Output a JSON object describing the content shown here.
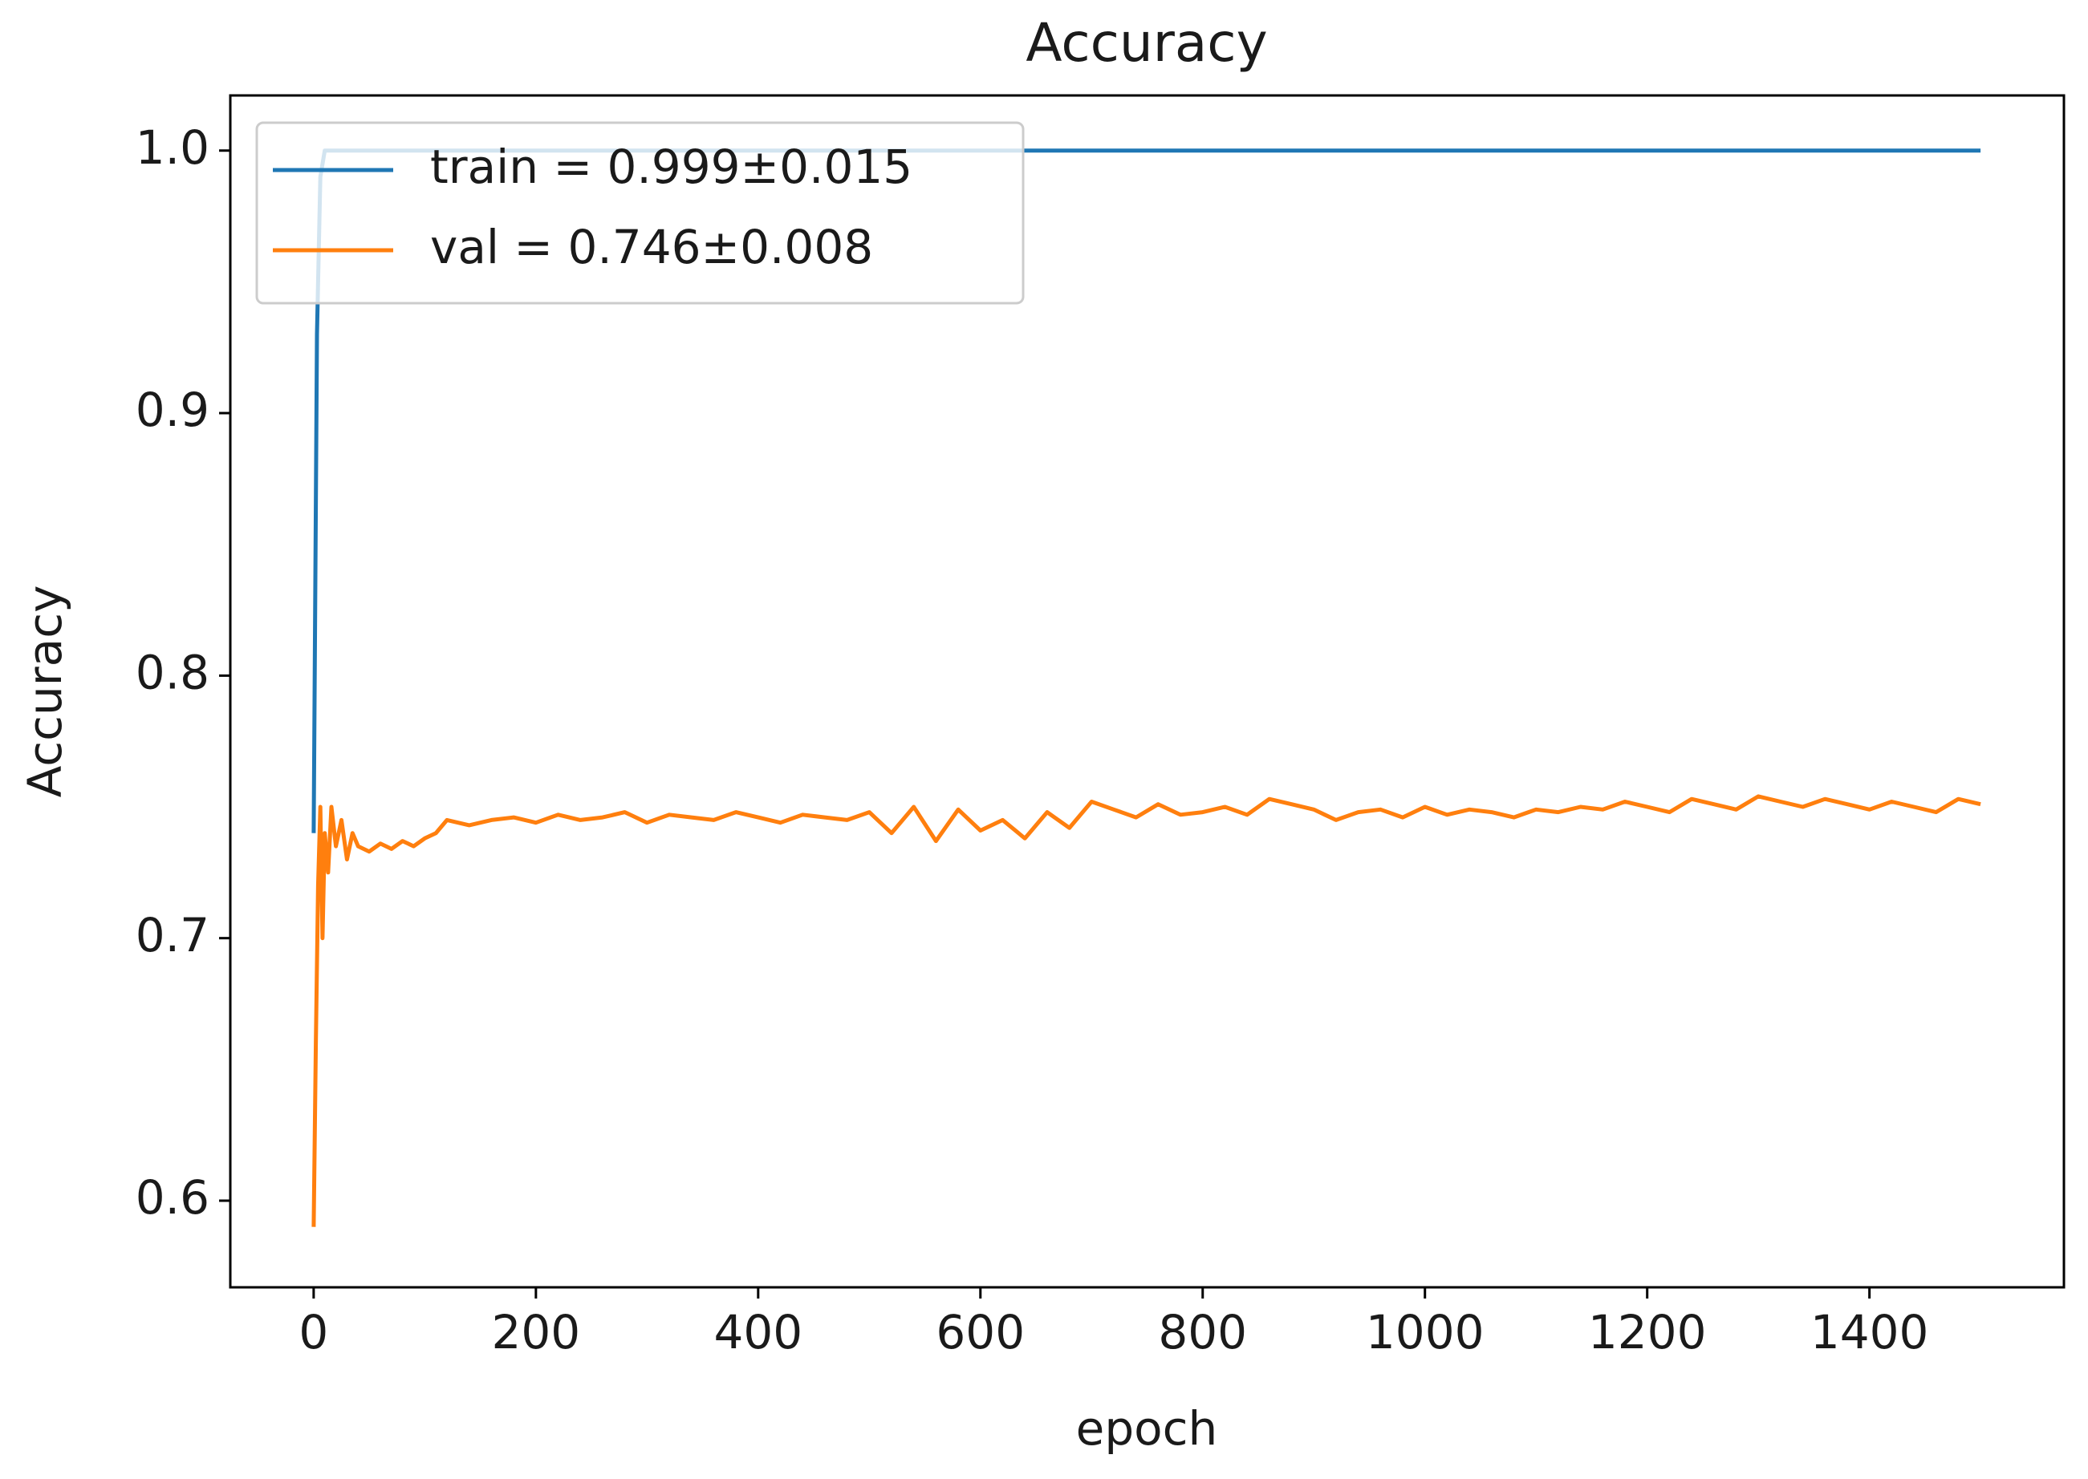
{
  "chart_data": {
    "type": "line",
    "title": "Accuracy",
    "x_label": "epoch",
    "y_label": "Accuracy",
    "xlim": [
      -75,
      1575
    ],
    "ylim": [
      0.567,
      1.021
    ],
    "xticks": [
      0,
      200,
      400,
      600,
      800,
      1000,
      1200,
      1400
    ],
    "yticks": [
      0.6,
      0.7,
      0.8,
      0.9,
      {
        "value": 1.0,
        "label": "1.0"
      }
    ],
    "legend": "upper left",
    "grid": false,
    "series": [
      {
        "name": "train = 0.999±0.015",
        "color": "#1f77b4",
        "x": [
          0,
          3,
          6,
          10,
          1500
        ],
        "values": [
          0.74,
          0.93,
          0.99,
          1.0,
          1.0
        ]
      },
      {
        "name": "val = 0.746±0.008",
        "color": "#ff7f0e",
        "x": [
          0,
          2,
          4,
          6,
          8,
          10,
          13,
          16,
          20,
          25,
          30,
          35,
          40,
          50,
          60,
          70,
          80,
          90,
          100,
          110,
          120,
          140,
          160,
          180,
          200,
          220,
          240,
          260,
          280,
          300,
          320,
          340,
          360,
          380,
          400,
          420,
          440,
          460,
          480,
          500,
          520,
          540,
          560,
          580,
          600,
          620,
          640,
          660,
          680,
          700,
          720,
          740,
          760,
          780,
          800,
          820,
          840,
          860,
          880,
          900,
          920,
          940,
          960,
          980,
          1000,
          1020,
          1040,
          1060,
          1080,
          1100,
          1120,
          1140,
          1160,
          1180,
          1200,
          1220,
          1240,
          1260,
          1280,
          1300,
          1320,
          1340,
          1360,
          1380,
          1400,
          1420,
          1440,
          1460,
          1480,
          1500
        ],
        "values": [
          0.59,
          0.66,
          0.72,
          0.75,
          0.7,
          0.74,
          0.725,
          0.75,
          0.735,
          0.745,
          0.73,
          0.74,
          0.735,
          0.733,
          0.736,
          0.734,
          0.737,
          0.735,
          0.738,
          0.74,
          0.745,
          0.743,
          0.745,
          0.746,
          0.744,
          0.747,
          0.745,
          0.746,
          0.748,
          0.744,
          0.747,
          0.746,
          0.745,
          0.748,
          0.746,
          0.744,
          0.747,
          0.746,
          0.745,
          0.748,
          0.74,
          0.75,
          0.737,
          0.749,
          0.741,
          0.745,
          0.738,
          0.748,
          0.742,
          0.752,
          0.749,
          0.746,
          0.751,
          0.747,
          0.748,
          0.75,
          0.747,
          0.753,
          0.751,
          0.749,
          0.745,
          0.748,
          0.749,
          0.746,
          0.75,
          0.747,
          0.749,
          0.748,
          0.746,
          0.749,
          0.748,
          0.75,
          0.749,
          0.752,
          0.75,
          0.748,
          0.753,
          0.751,
          0.749,
          0.754,
          0.752,
          0.75,
          0.753,
          0.751,
          0.749,
          0.752,
          0.75,
          0.748,
          0.753,
          0.751
        ]
      }
    ]
  }
}
